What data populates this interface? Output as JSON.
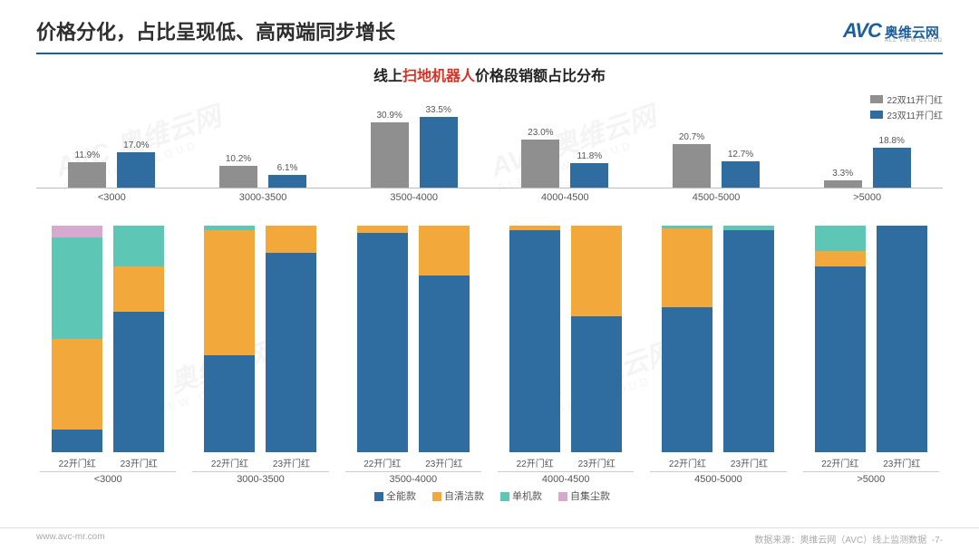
{
  "header": {
    "title": "价格分化，占比呈现低、高两端同步增长",
    "logo_avc": "AVC",
    "logo_cn": "奥维云网",
    "logo_en": "ALL VIEW CLOUD"
  },
  "subtitle": {
    "pre": "线上",
    "hl": "扫地机器人",
    "post": "价格段销额占比分布"
  },
  "colors": {
    "gray": "#8f8f8f",
    "blue": "#2f6da0",
    "seg_blue": "#2f6da0",
    "seg_orange": "#f3a83c",
    "seg_teal": "#5ec6b4",
    "seg_pink": "#d6a9cf",
    "rule": "#1d5f9e"
  },
  "top_chart": {
    "type": "grouped-bar",
    "ymax": 34,
    "legend": [
      {
        "label": "22双11开门红",
        "color": "#8f8f8f"
      },
      {
        "label": "23双11开门红",
        "color": "#2f6da0"
      }
    ],
    "categories": [
      "<3000",
      "3000-3500",
      "3500-4000",
      "4000-4500",
      "4500-5000",
      ">5000"
    ],
    "series22": [
      11.9,
      10.2,
      30.9,
      23.0,
      20.7,
      3.3
    ],
    "series23": [
      17.0,
      6.1,
      33.5,
      11.8,
      12.7,
      18.8
    ],
    "labels22": [
      "11.9%",
      "10.2%",
      "30.9%",
      "23.0%",
      "20.7%",
      "3.3%"
    ],
    "labels23": [
      "17.0%",
      "6.1%",
      "33.5%",
      "11.8%",
      "12.7%",
      "18.8%"
    ]
  },
  "bottom_chart": {
    "type": "stacked-bar",
    "legend": [
      {
        "label": "全能款",
        "color": "#2f6da0"
      },
      {
        "label": "自清洁款",
        "color": "#f3a83c"
      },
      {
        "label": "单机款",
        "color": "#5ec6b4"
      },
      {
        "label": "自集尘款",
        "color": "#d6a9cf"
      }
    ],
    "sub_labels": [
      "22开门红",
      "23开门红"
    ],
    "categories": [
      "<3000",
      "3000-3500",
      "3500-4000",
      "4000-4500",
      "4500-5000",
      ">5000"
    ],
    "bars": [
      {
        "cat": "<3000",
        "sub": "22开门红",
        "seg": [
          10,
          40,
          45,
          5
        ]
      },
      {
        "cat": "<3000",
        "sub": "23开门红",
        "seg": [
          62,
          20,
          18,
          0
        ]
      },
      {
        "cat": "3000-3500",
        "sub": "22开门红",
        "seg": [
          43,
          55,
          2,
          0
        ]
      },
      {
        "cat": "3000-3500",
        "sub": "23开门红",
        "seg": [
          88,
          12,
          0,
          0
        ]
      },
      {
        "cat": "3500-4000",
        "sub": "22开门红",
        "seg": [
          97,
          3,
          0,
          0
        ]
      },
      {
        "cat": "3500-4000",
        "sub": "23开门红",
        "seg": [
          78,
          22,
          0,
          0
        ]
      },
      {
        "cat": "4000-4500",
        "sub": "22开门红",
        "seg": [
          98,
          2,
          0,
          0
        ]
      },
      {
        "cat": "4000-4500",
        "sub": "23开门红",
        "seg": [
          60,
          40,
          0,
          0
        ]
      },
      {
        "cat": "4500-5000",
        "sub": "22开门红",
        "seg": [
          64,
          35,
          1,
          0
        ]
      },
      {
        "cat": "4500-5000",
        "sub": "23开门红",
        "seg": [
          98,
          0,
          2,
          0
        ]
      },
      {
        "cat": ">5000",
        "sub": "22开门红",
        "seg": [
          82,
          7,
          11,
          0
        ]
      },
      {
        "cat": ">5000",
        "sub": "23开门红",
        "seg": [
          100,
          0,
          0,
          0
        ]
      }
    ]
  },
  "footer": {
    "left": "www.avc-mr.com",
    "right": "数据来源：奥维云网（AVC）线上监测数据",
    "page": "-7-"
  },
  "watermark": {
    "line1": "AVC 奥维云网",
    "line2": "ALL VIEW CLOUD"
  }
}
